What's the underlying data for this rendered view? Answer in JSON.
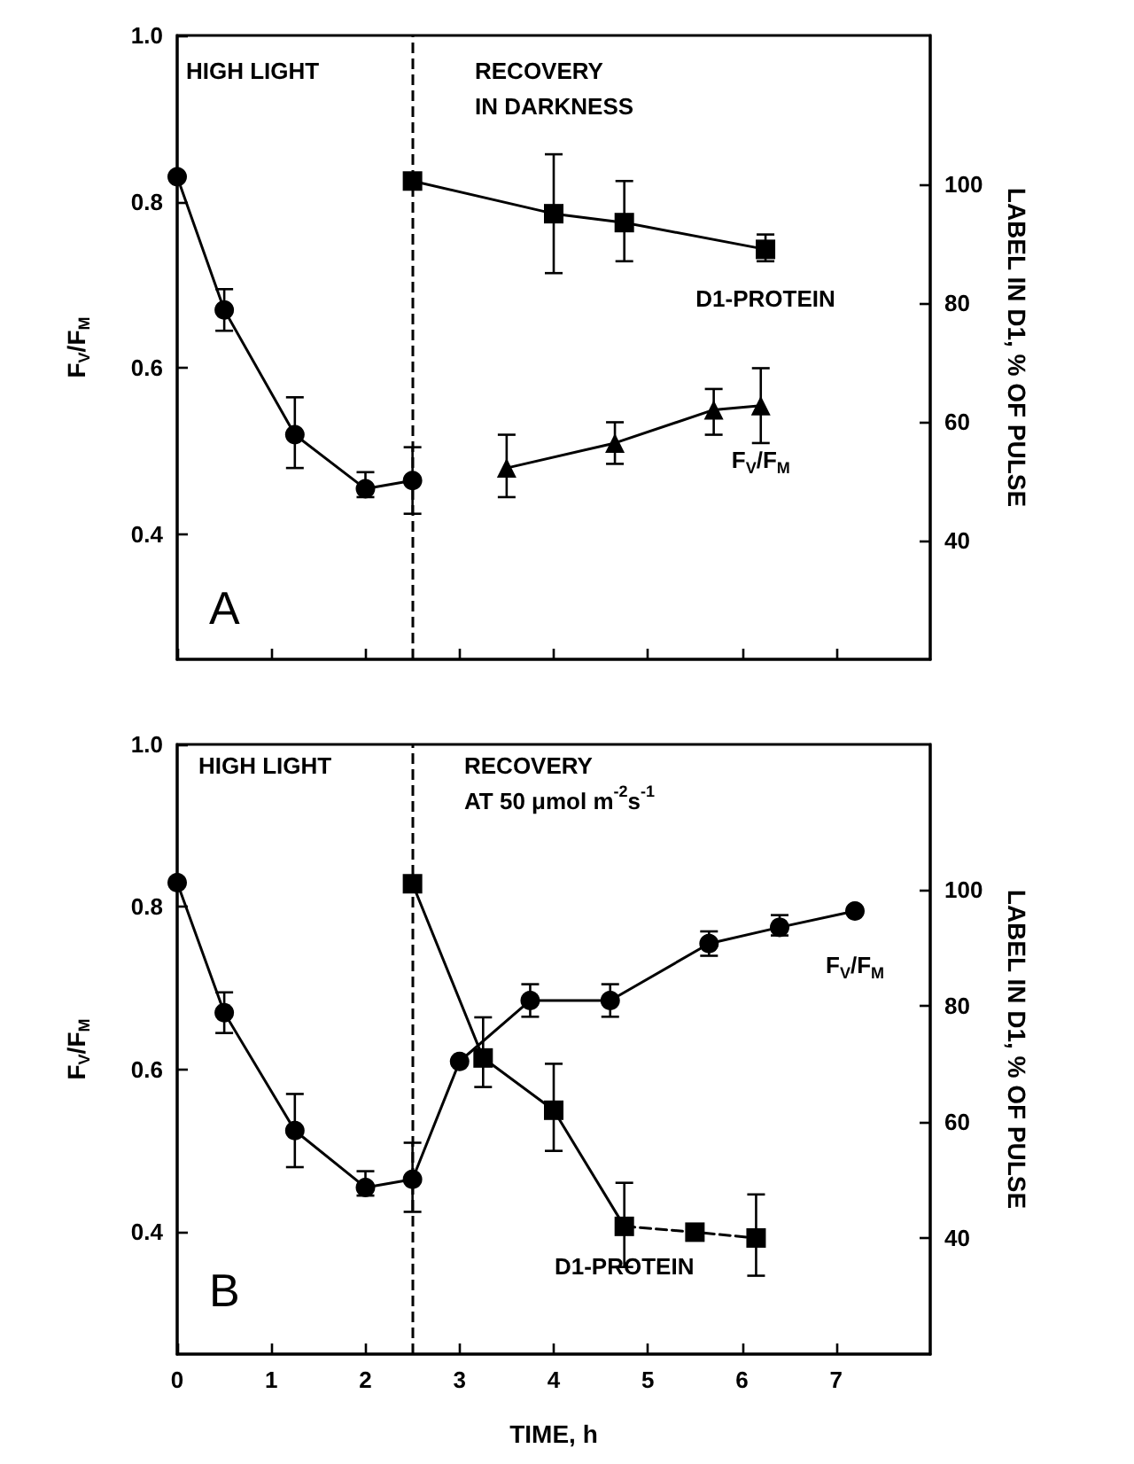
{
  "chart_data": [
    {
      "type": "line",
      "ylabel": "F$_{V}$/F$_{M}$",
      "y2label": "LABEL IN D1, % OF PULSE",
      "annotations": [
        "HIGH LIGHT",
        "RECOVERY\nIN DARKNESS",
        "A"
      ],
      "xlim": [
        0,
        8
      ],
      "xticks": [
        0,
        1,
        2,
        3,
        4,
        5,
        6,
        7
      ],
      "ylim": [
        0.25,
        1.0
      ],
      "yticks": [
        0.4,
        0.6,
        0.8,
        {
          "value": 1.0,
          "label": "1.0"
        }
      ],
      "y2lim": [
        20,
        125
      ],
      "y2ticks": [
        40,
        60,
        80,
        100
      ],
      "tick_labels": "y",
      "grid": false,
      "legend": false,
      "ref_lines": [
        {
          "axis": "x",
          "value": 2.5,
          "color": "#000000",
          "line_style": "dashed"
        }
      ],
      "series": [
        {
          "name": "F$_{V}$/F$_{M}$",
          "color": "#000000",
          "marker": "triangle",
          "x": [
            3.5,
            4.65,
            5.7,
            6.2
          ],
          "values": [
            0.48,
            0.51,
            0.55,
            0.555
          ],
          "errors": [
            [
              0.445,
              0.52
            ],
            [
              0.485,
              0.535
            ],
            [
              0.52,
              0.575
            ],
            [
              0.51,
              0.6
            ]
          ]
        },
        {
          "name": "D1-PROTEIN",
          "color": "#000000",
          "marker": "square",
          "axis": "y2",
          "x": [
            2.5,
            4.0,
            4.75,
            6.25
          ],
          "values": [
            100.5,
            95,
            93.5,
            89
          ],
          "errors": [
            null,
            [
              85,
              105
            ],
            [
              87,
              100.5
            ],
            [
              87,
              91.5
            ]
          ]
        },
        {
          "color": "#000000",
          "marker": "circle",
          "x": [
            0,
            0.5,
            1.25,
            2.0,
            2.5
          ],
          "values": [
            0.83,
            0.67,
            0.52,
            0.455,
            0.465
          ],
          "errors": [
            null,
            [
              0.645,
              0.695
            ],
            [
              0.48,
              0.565
            ],
            [
              0.445,
              0.475
            ],
            [
              0.425,
              0.505
            ]
          ]
        }
      ]
    },
    {
      "type": "line",
      "xlabel": "TIME, h",
      "ylabel": "F$_{V}$/F$_{M}$",
      "y2label": "LABEL IN D1, % OF PULSE",
      "annotations": [
        "HIGH LIGHT",
        "RECOVERY\nAT 50 μmol m$^{-2}$s$^{-1}$",
        "B"
      ],
      "xlim": [
        0,
        8
      ],
      "xticks": [
        0,
        1,
        2,
        3,
        4,
        5,
        6,
        7
      ],
      "ylim": [
        0.25,
        1.0
      ],
      "yticks": [
        0.4,
        0.6,
        0.8,
        {
          "value": 1.0,
          "label": "1.0"
        }
      ],
      "y2lim": [
        20,
        125
      ],
      "y2ticks": [
        40,
        60,
        80,
        100
      ],
      "grid": false,
      "legend": false,
      "ref_lines": [
        {
          "axis": "x",
          "value": 2.5,
          "color": "#000000",
          "line_style": "dashed"
        }
      ],
      "series": [
        {
          "name": "F$_{V}$/F$_{M}$",
          "color": "#000000",
          "marker": "circle",
          "x": [
            2.5,
            3.0,
            3.75,
            4.6,
            5.65,
            6.4,
            7.2
          ],
          "values": [
            0.465,
            0.61,
            0.685,
            0.685,
            0.755,
            0.775,
            0.795
          ],
          "errors": [
            null,
            null,
            [
              0.665,
              0.705
            ],
            [
              0.665,
              0.705
            ],
            [
              0.74,
              0.77
            ],
            [
              0.765,
              0.79
            ],
            null
          ]
        },
        {
          "name": "D1-PROTEIN",
          "color": "#000000",
          "marker": "square",
          "axis": "y2",
          "x": [
            2.5,
            3.25,
            4.0,
            4.75
          ],
          "values": [
            101,
            71,
            62,
            42
          ],
          "errors": [
            null,
            [
              66,
              78
            ],
            [
              55,
              70
            ],
            [
              35,
              49.5
            ]
          ]
        },
        {
          "color": "#000000",
          "marker": "square",
          "axis": "y2",
          "line_style": "dashed",
          "x": [
            4.75,
            5.5,
            6.15
          ],
          "values": [
            42,
            41,
            40
          ],
          "errors": [
            null,
            null,
            [
              33.5,
              47.5
            ]
          ]
        },
        {
          "color": "#000000",
          "marker": "circle",
          "x": [
            0,
            0.5,
            1.25,
            2.0,
            2.5
          ],
          "values": [
            0.83,
            0.67,
            0.525,
            0.455,
            0.465
          ],
          "errors": [
            null,
            [
              0.645,
              0.695
            ],
            [
              0.48,
              0.57
            ],
            [
              0.445,
              0.475
            ],
            [
              0.425,
              0.51
            ]
          ]
        }
      ]
    }
  ]
}
